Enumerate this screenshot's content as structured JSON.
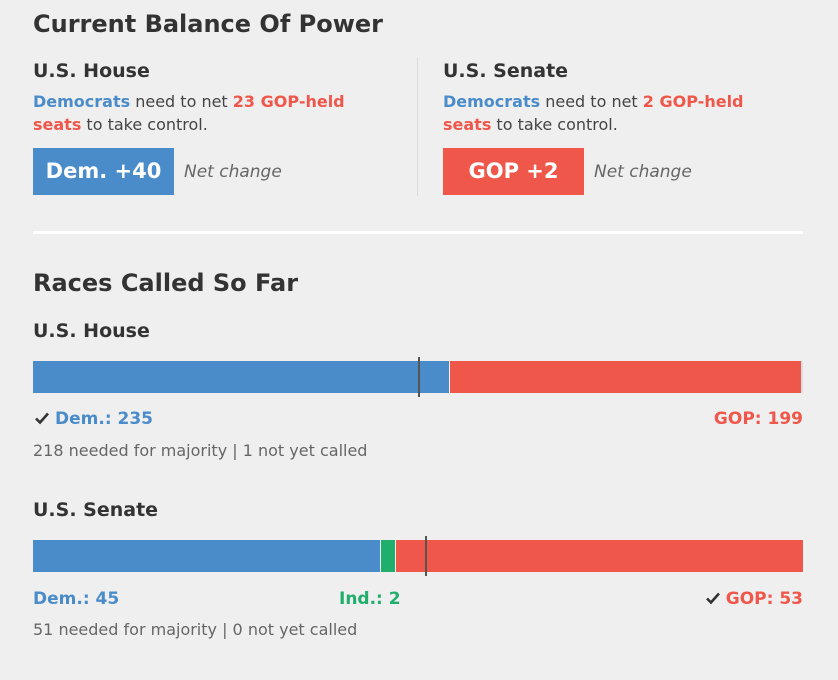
{
  "balance": {
    "title": "Current Balance Of Power",
    "house": {
      "title": "U.S. House",
      "party": "Democrats",
      "need_text": " need to net ",
      "seats": "23 GOP-held seats",
      "end_text": " to take control.",
      "net_label": "Dem. +40",
      "net_caption": "Net change"
    },
    "senate": {
      "title": "U.S. Senate",
      "party": "Democrats",
      "need_text": " need to net ",
      "seats": "2 GOP-held seats",
      "end_text": " to take control.",
      "net_label": "GOP +2",
      "net_caption": "Net change"
    }
  },
  "races": {
    "title": "Races Called So Far",
    "house": {
      "title": "U.S. House",
      "dem_label": "Dem.: 235",
      "gop_label": "GOP: 199",
      "note": "218 needed for majority | 1 not yet called"
    },
    "senate": {
      "title": "U.S. Senate",
      "dem_label": "Dem.: 45",
      "ind_label": "Ind.: 2",
      "gop_label": "GOP: 53",
      "note": "51 needed for majority | 0 not yet called"
    }
  },
  "colors": {
    "dem": "#4a8cca",
    "gop": "#f0574b",
    "ind": "#1fae6b"
  },
  "icons": {
    "winner": "check-icon"
  },
  "chart_data": [
    {
      "type": "bar",
      "title": "U.S. House",
      "orientation": "horizontal-stacked",
      "total": 435,
      "majority": 218,
      "series": [
        {
          "name": "Dem.",
          "values": [
            235
          ],
          "color": "#4a8cca"
        },
        {
          "name": "GOP",
          "values": [
            199
          ],
          "color": "#f0574b"
        }
      ],
      "not_called": 1,
      "winner": "Dem."
    },
    {
      "type": "bar",
      "title": "U.S. Senate",
      "orientation": "horizontal-stacked",
      "total": 100,
      "majority": 51,
      "series": [
        {
          "name": "Dem.",
          "values": [
            45
          ],
          "color": "#4a8cca"
        },
        {
          "name": "Ind.",
          "values": [
            2
          ],
          "color": "#1fae6b"
        },
        {
          "name": "GOP",
          "values": [
            53
          ],
          "color": "#f0574b"
        }
      ],
      "not_called": 0,
      "winner": "GOP"
    }
  ]
}
